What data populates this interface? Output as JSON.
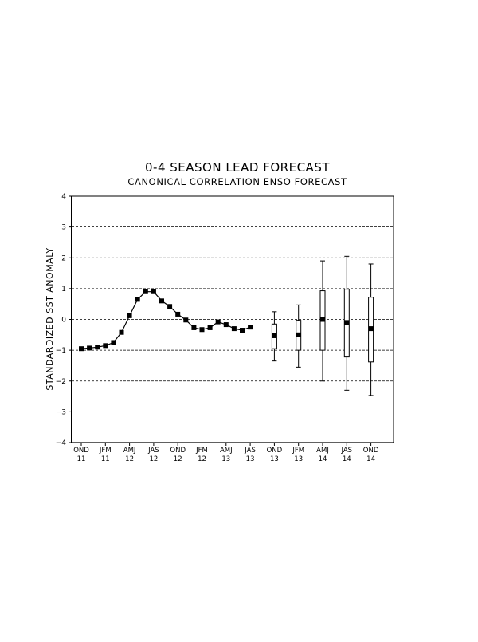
{
  "chart_data": {
    "type": "line",
    "title": "0-4 SEASON LEAD FORECAST",
    "subtitle": "CANONICAL CORRELATION ENSO FORECAST",
    "ylabel": "STANDARDIZED SST ANOMALY",
    "xlabel": "",
    "ylim": [
      -4,
      4
    ],
    "yticks": [
      -4,
      -3,
      -2,
      -1,
      0,
      1,
      2,
      3,
      4
    ],
    "grid": "horizontal dashed",
    "x_ticks": [
      {
        "season": "OND",
        "year": "11"
      },
      {
        "season": "JFM",
        "year": "11"
      },
      {
        "season": "AMJ",
        "year": "12"
      },
      {
        "season": "JAS",
        "year": "12"
      },
      {
        "season": "OND",
        "year": "12"
      },
      {
        "season": "JFM",
        "year": "12"
      },
      {
        "season": "AMJ",
        "year": "13"
      },
      {
        "season": "JAS",
        "year": "13"
      },
      {
        "season": "OND",
        "year": "13"
      },
      {
        "season": "JFM",
        "year": "13"
      },
      {
        "season": "AMJ",
        "year": "14"
      },
      {
        "season": "JAS",
        "year": "14"
      },
      {
        "season": "OND",
        "year": "14"
      }
    ],
    "observed": {
      "values": [
        -0.95,
        -0.93,
        -0.9,
        -0.85,
        -0.75,
        -0.42,
        0.12,
        0.65,
        0.9,
        0.9,
        0.6,
        0.42,
        0.17,
        -0.02,
        -0.27,
        -0.33,
        -0.27,
        -0.08,
        -0.17,
        -0.3,
        -0.35,
        -0.25
      ]
    },
    "forecast": [
      {
        "center": -0.53,
        "box": [
          -0.95,
          -0.15
        ],
        "whisker": [
          -1.35,
          0.25
        ]
      },
      {
        "center": -0.5,
        "box": [
          -1.0,
          -0.03
        ],
        "whisker": [
          -1.55,
          0.47
        ]
      },
      {
        "center": 0.0,
        "box": [
          -1.0,
          0.93
        ],
        "whisker": [
          -2.0,
          1.9
        ]
      },
      {
        "center": -0.1,
        "box": [
          -1.22,
          0.98
        ],
        "whisker": [
          -2.3,
          2.05
        ]
      },
      {
        "center": -0.3,
        "box": [
          -1.38,
          0.72
        ],
        "whisker": [
          -2.47,
          1.8
        ]
      }
    ],
    "colors": {
      "line": "#000000",
      "marker": "#000000",
      "grid": "#000000",
      "box_fill": "#ffffff"
    }
  }
}
